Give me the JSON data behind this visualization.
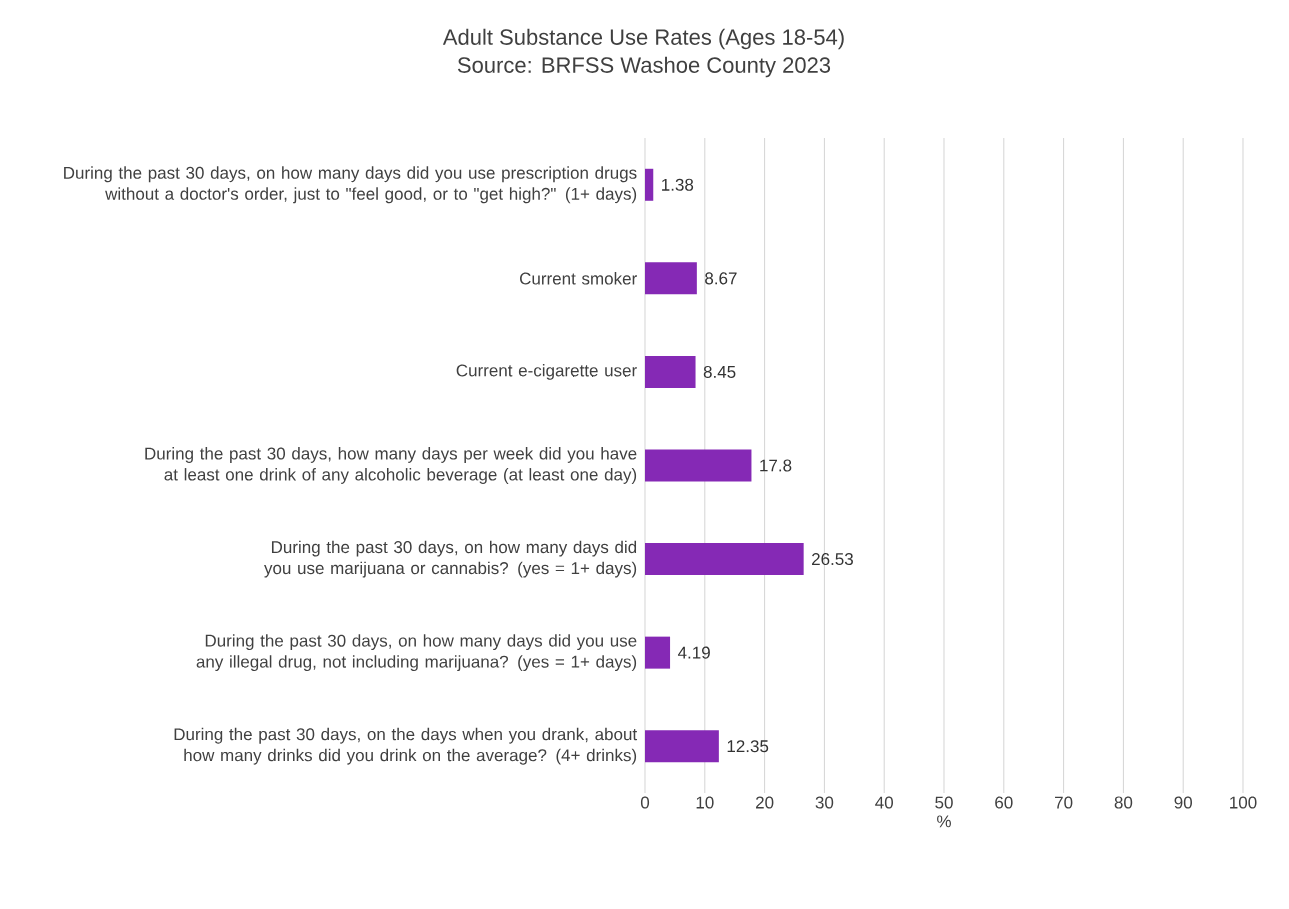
{
  "chart_data": {
    "type": "bar",
    "orientation": "horizontal",
    "title": "Adult Substance Use Rates (Ages 18-54)",
    "subtitle": "Source: BRFSS Washoe County 2023",
    "xlabel": "%",
    "categories": [
      "During the past 30 days, on how many days did you use prescription drugs without a doctor's order, just to \"feel good, or to \"get high?\" (1+ days)",
      "Current smoker",
      "Current e-cigarette user",
      "During the past 30 days, how many days per week did you have at least one drink of any alcoholic beverage (at least one day)",
      "During the past 30 days, on how many days did you use marijuana or cannabis? (yes = 1+ days)",
      "During the past 30 days, on how many days did you use any illegal drug, not including marijuana? (yes = 1+ days)",
      "During the past 30 days, on the days when you drank, about how many drinks did you drink on the average? (4+ drinks)"
    ],
    "values": [
      1.38,
      8.67,
      8.45,
      17.8,
      26.53,
      4.19,
      12.35
    ],
    "color": "#8529b5",
    "data_labels": true,
    "grid": "x",
    "xlim": [
      0,
      100
    ],
    "xticks": [
      0,
      10,
      20,
      30,
      40,
      50,
      60,
      70,
      80,
      90,
      100
    ]
  }
}
